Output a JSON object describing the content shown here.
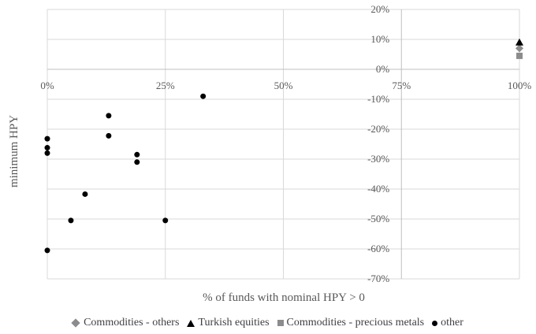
{
  "chart_data": {
    "type": "scatter",
    "xlabel": "% of funds with nominal HPY > 0",
    "ylabel": "minimum HPY",
    "xlim": [
      0,
      1
    ],
    "ylim": [
      -0.7,
      0.2
    ],
    "x_ticks": [
      {
        "value": 0,
        "label": "0%"
      },
      {
        "value": 0.25,
        "label": "25%"
      },
      {
        "value": 0.5,
        "label": "50%"
      },
      {
        "value": 0.75,
        "label": "75%"
      },
      {
        "value": 1,
        "label": "100%"
      }
    ],
    "y_ticks": [
      {
        "value": 0.2,
        "label": "20%"
      },
      {
        "value": 0.1,
        "label": "10%"
      },
      {
        "value": 0,
        "label": "0%"
      },
      {
        "value": -0.1,
        "label": "-10%"
      },
      {
        "value": -0.2,
        "label": "-20%"
      },
      {
        "value": -0.3,
        "label": "-30%"
      },
      {
        "value": -0.4,
        "label": "-40%"
      },
      {
        "value": -0.5,
        "label": "-50%"
      },
      {
        "value": -0.6,
        "label": "-60%"
      },
      {
        "value": -0.7,
        "label": "-70%"
      }
    ],
    "grid": true,
    "legend_position": "bottom",
    "series": [
      {
        "name": "Commodities - others",
        "marker": "diamond",
        "color": "#8c8c8c",
        "points": [
          {
            "x": 1.0,
            "y": 0.07
          }
        ]
      },
      {
        "name": "Turkish equities",
        "marker": "triangle",
        "color": "#000000",
        "points": [
          {
            "x": 1.0,
            "y": 0.09
          }
        ]
      },
      {
        "name": "Commodities - precious metals",
        "marker": "square",
        "color": "#8c8c8c",
        "points": [
          {
            "x": 1.0,
            "y": 0.045
          }
        ]
      },
      {
        "name": "other",
        "marker": "circle",
        "color": "#000000",
        "points": [
          {
            "x": 0.33,
            "y": -0.09
          },
          {
            "x": 0.13,
            "y": -0.155
          },
          {
            "x": 0.13,
            "y": -0.222
          },
          {
            "x": 0.0,
            "y": -0.232
          },
          {
            "x": 0.0,
            "y": -0.262
          },
          {
            "x": 0.0,
            "y": -0.28
          },
          {
            "x": 0.19,
            "y": -0.285
          },
          {
            "x": 0.19,
            "y": -0.31
          },
          {
            "x": 0.08,
            "y": -0.417
          },
          {
            "x": 0.05,
            "y": -0.505
          },
          {
            "x": 0.25,
            "y": -0.505
          },
          {
            "x": 0.0,
            "y": -0.605
          }
        ]
      }
    ]
  }
}
